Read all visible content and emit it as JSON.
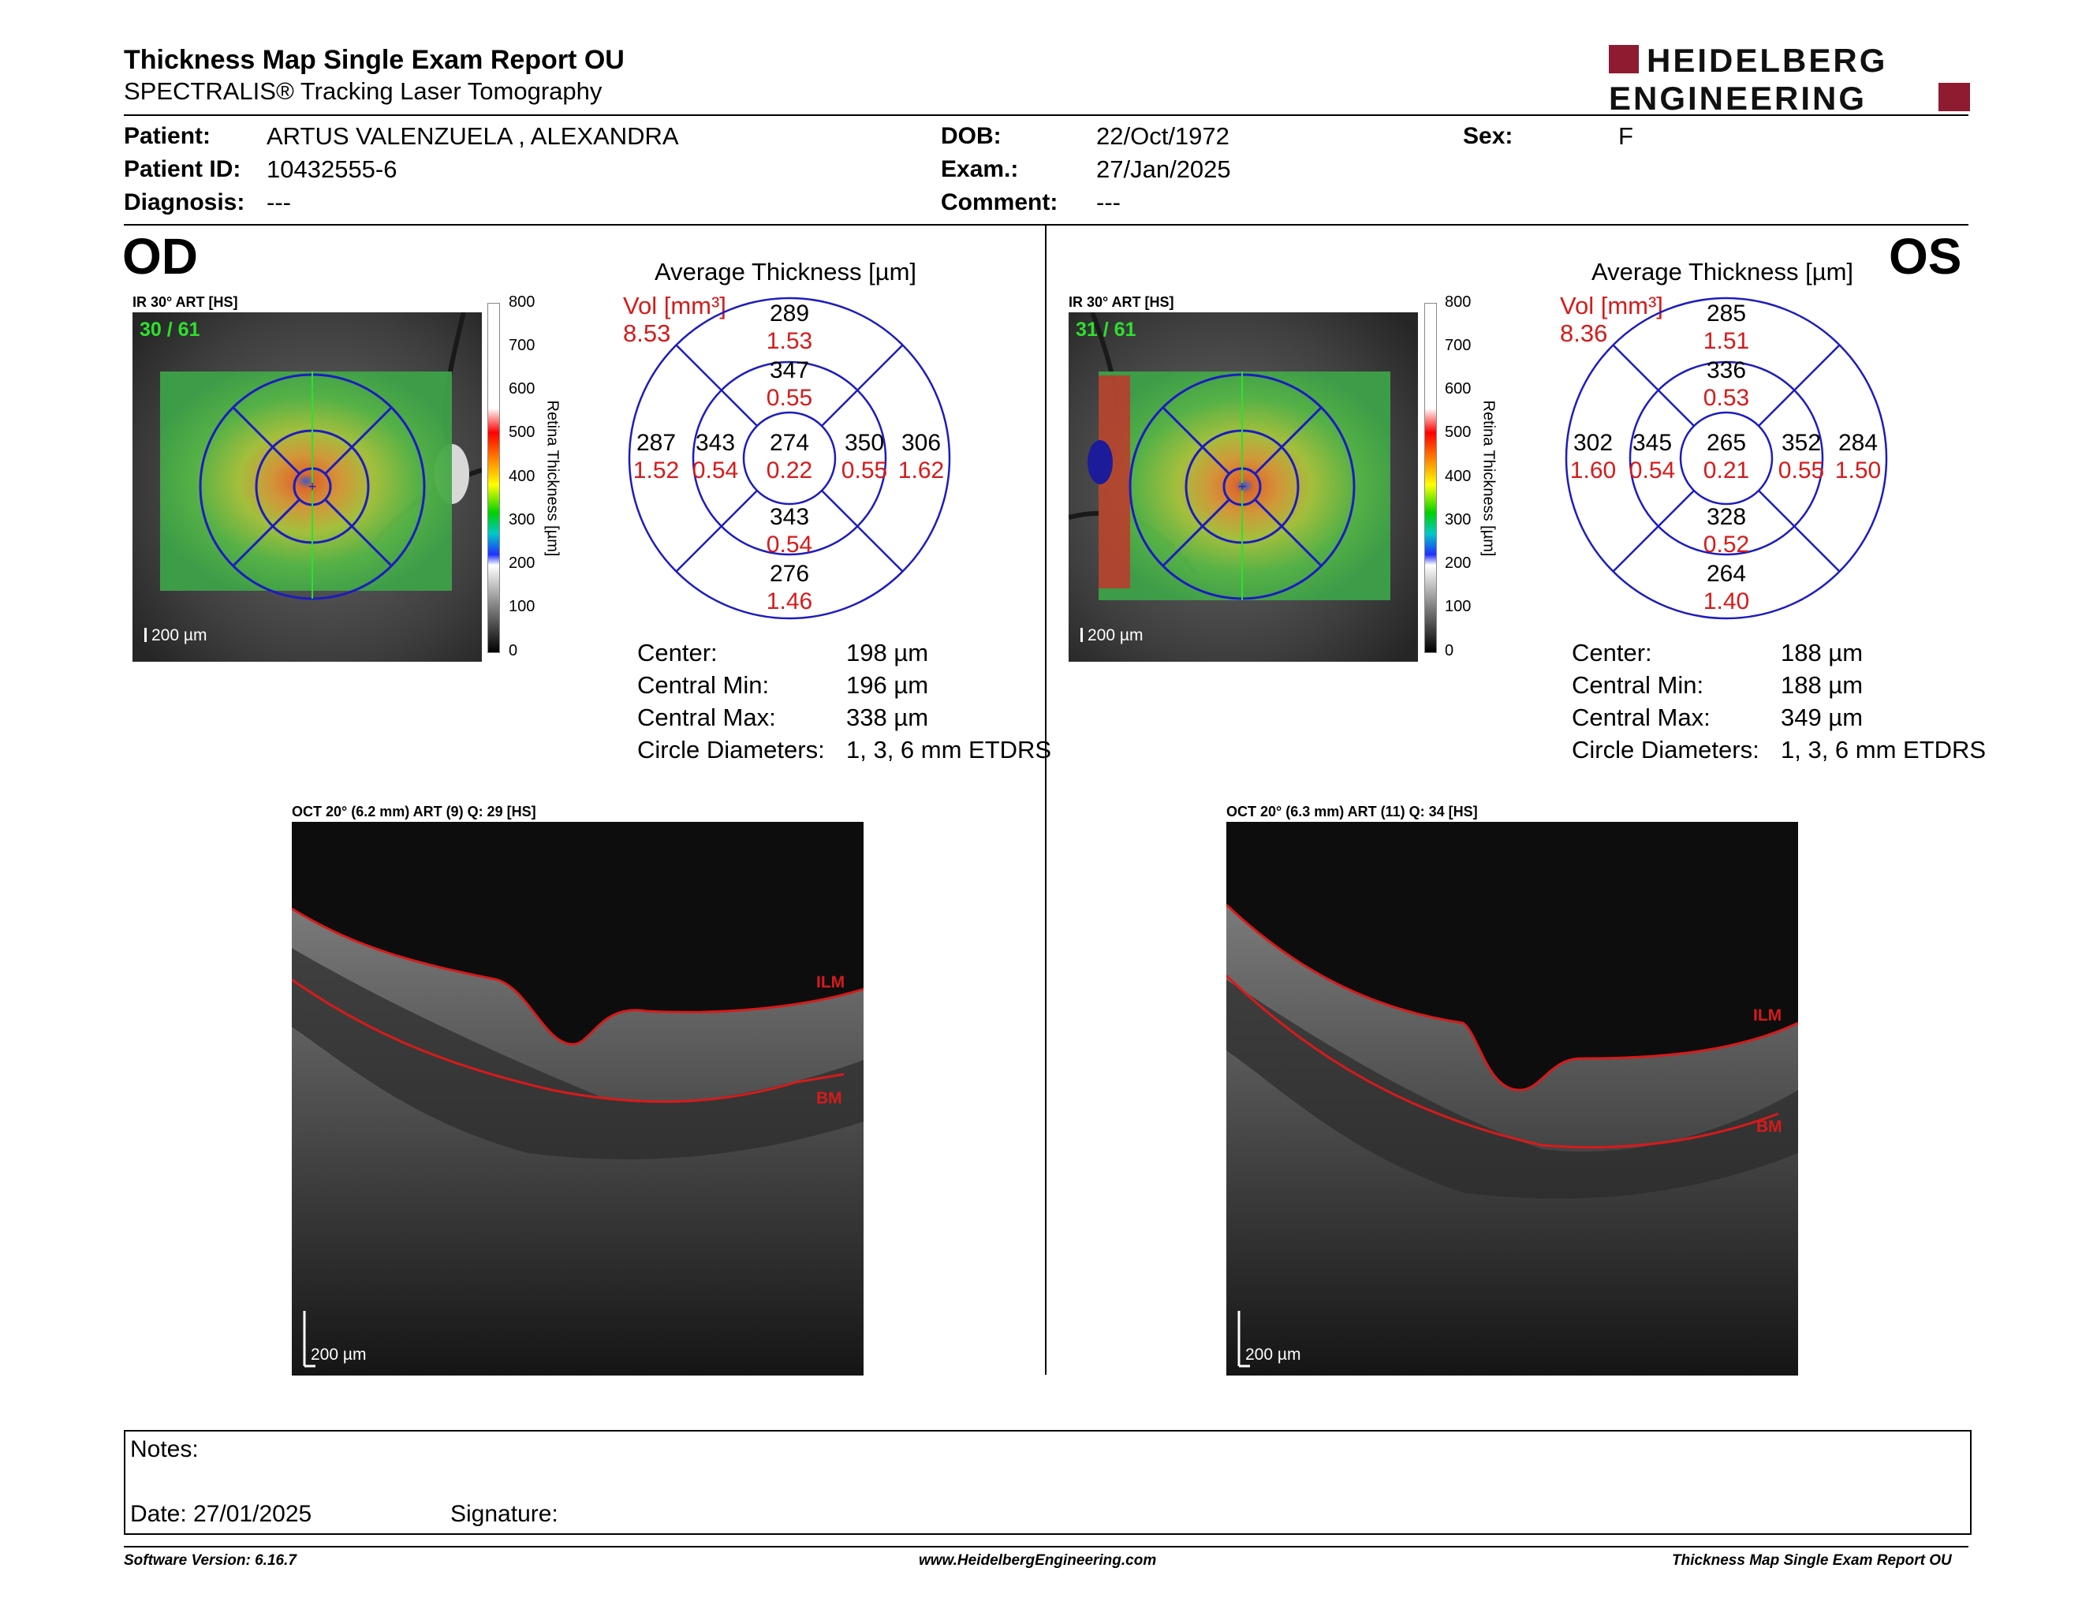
{
  "header": {
    "title": "Thickness Map Single Exam Report OU",
    "subtitle": "SPECTRALIS® Tracking Laser Tomography",
    "logo_line1": "HEIDELBERG",
    "logo_line2": "ENGINEERING"
  },
  "patient": {
    "patient_label": "Patient:",
    "patient_value": "ARTUS VALENZUELA , ALEXANDRA",
    "id_label": "Patient ID:",
    "id_value": "10432555-6",
    "diagnosis_label": "Diagnosis:",
    "diagnosis_value": "---",
    "dob_label": "DOB:",
    "dob_value": "22/Oct/1972",
    "exam_label": "Exam.:",
    "exam_value": "27/Jan/2025",
    "comment_label": "Comment:",
    "comment_value": "---",
    "sex_label": "Sex:",
    "sex_value": "F"
  },
  "od": {
    "eye": "OD",
    "ir_label": "IR 30° ART [HS]",
    "frames": "30 / 61",
    "scale": "200 µm",
    "avg_title": "Average Thickness [µm]",
    "vol_label": "Vol [mm³]",
    "vol_value": "8.53",
    "grid": {
      "sup_outer": "289",
      "sup_outer_vol": "1.53",
      "sup_inner": "347",
      "sup_inner_vol": "0.55",
      "temp_outer": "287",
      "temp_outer_vol": "1.52",
      "temp_inner": "343",
      "temp_inner_vol": "0.54",
      "center": "274",
      "center_vol": "0.22",
      "nasal_inner": "350",
      "nasal_inner_vol": "0.55",
      "nasal_outer": "306",
      "nasal_outer_vol": "1.62",
      "inf_inner": "343",
      "inf_inner_vol": "0.54",
      "inf_outer": "276",
      "inf_outer_vol": "1.46"
    },
    "stats": {
      "center_label": "Center:",
      "center_value": "198 µm",
      "min_label": "Central Min:",
      "min_value": "196 µm",
      "max_label": "Central Max:",
      "max_value": "338 µm",
      "circ_label": "Circle Diameters:",
      "circ_value": "1, 3, 6 mm ETDRS"
    },
    "oct_label": "OCT 20° (6.2 mm) ART (9) Q: 29 [HS]",
    "oct_scale": "200 µm",
    "ilm": "ILM",
    "bm": "BM"
  },
  "os": {
    "eye": "OS",
    "ir_label": "IR 30° ART [HS]",
    "frames": "31 / 61",
    "scale": "200 µm",
    "avg_title": "Average Thickness [µm]",
    "vol_label": "Vol [mm³]",
    "vol_value": "8.36",
    "grid": {
      "sup_outer": "285",
      "sup_outer_vol": "1.51",
      "sup_inner": "336",
      "sup_inner_vol": "0.53",
      "temp_outer": "302",
      "temp_outer_vol": "1.60",
      "temp_inner": "345",
      "temp_inner_vol": "0.54",
      "center": "265",
      "center_vol": "0.21",
      "nasal_inner": "352",
      "nasal_inner_vol": "0.55",
      "nasal_outer": "284",
      "nasal_outer_vol": "1.50",
      "inf_inner": "328",
      "inf_inner_vol": "0.52",
      "inf_outer": "264",
      "inf_outer_vol": "1.40"
    },
    "stats": {
      "center_label": "Center:",
      "center_value": "188 µm",
      "min_label": "Central Min:",
      "min_value": "188 µm",
      "max_label": "Central Max:",
      "max_value": "349 µm",
      "circ_label": "Circle Diameters:",
      "circ_value": "1, 3, 6 mm ETDRS"
    },
    "oct_label": "OCT 20° (6.3 mm) ART (11) Q: 34 [HS]",
    "oct_scale": "200 µm",
    "ilm": "ILM",
    "bm": "BM"
  },
  "colorbar": {
    "ticks": [
      "800",
      "700",
      "600",
      "500",
      "400",
      "300",
      "200",
      "100",
      "0"
    ],
    "axis_label": "Retina Thickness [µm]"
  },
  "notes": {
    "notes_label": "Notes:",
    "date_label": "Date: 27/01/2025",
    "signature_label": "Signature:"
  },
  "footer": {
    "version": "Software Version: 6.16.7",
    "website": "www.HeidelbergEngineering.com",
    "report_name": "Thickness Map Single Exam Report OU"
  },
  "colors": {
    "accent_red": "#d81a1a",
    "logo_red": "#8e1b2f",
    "grid_blue": "#1c1cc0"
  }
}
